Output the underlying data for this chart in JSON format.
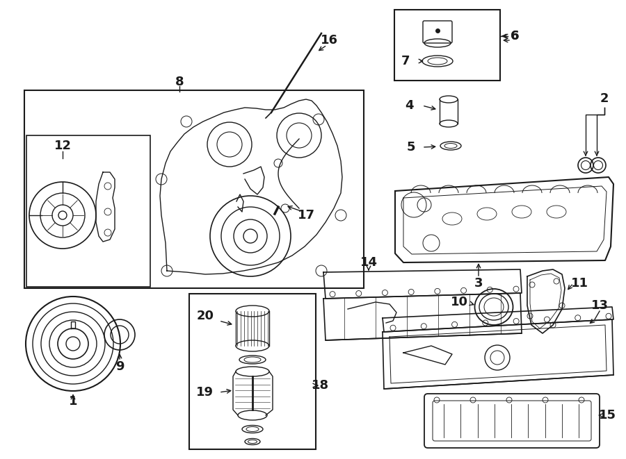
{
  "bg_color": "#ffffff",
  "line_color": "#1a1a1a",
  "fig_width": 9.0,
  "fig_height": 6.61,
  "dpi": 100,
  "lw": 1.0
}
